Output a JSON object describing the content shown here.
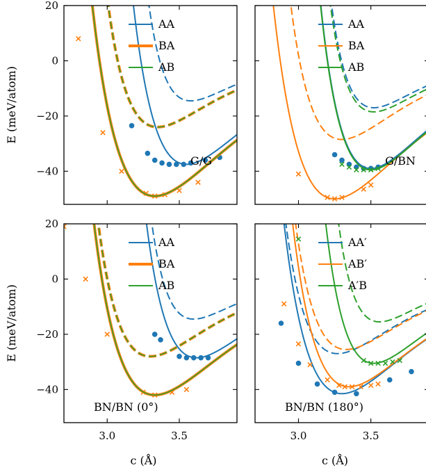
{
  "chart_data": [
    {
      "type": "line",
      "panel_label": "G/G",
      "xlim": [
        2.7,
        3.9
      ],
      "ylim": [
        -52,
        20
      ],
      "xticks": [
        "3.0",
        "3.5"
      ],
      "yticks": [
        "20",
        "0",
        "−20",
        "−40"
      ],
      "ylabel": "E (meV/atom)",
      "xlabel": "",
      "legend_position": "top-right",
      "series": [
        {
          "name": "AA",
          "color": "#1f77b4",
          "x0": 3.55,
          "y0": -37.5,
          "k": 360,
          "width": 2,
          "dashed": {
            "x0": 3.58,
            "y0": -14.5,
            "k": 300
          },
          "markers": {
            "shape": "circle",
            "x": [
              3.17,
              3.28,
              3.33,
              3.38,
              3.43,
              3.48,
              3.53,
              3.58,
              3.68,
              3.78
            ],
            "y": [
              -23.5,
              -33.5,
              -36,
              -37,
              -37.5,
              -37.5,
              -37.5,
              -37,
              -36,
              -35
            ]
          }
        },
        {
          "name": "BA",
          "color": "#ff7f0e",
          "x0": 3.33,
          "y0": -49,
          "k": 320,
          "width": 4,
          "dashed": {
            "x0": 3.35,
            "y0": -24,
            "k": 300
          },
          "markers": {
            "shape": "x",
            "x": [
              2.8,
              2.97,
              3.1,
              3.27,
              3.33,
              3.4,
              3.5,
              3.63
            ],
            "y": [
              8,
              -26,
              -40,
              -48,
              -49,
              -48.5,
              -47,
              -44
            ]
          }
        },
        {
          "name": "AB",
          "color": "#2ca02c",
          "x0": 3.33,
          "y0": -49,
          "k": 320,
          "width": 1.5,
          "dashed": {
            "x0": 3.35,
            "y0": -24,
            "k": 300
          },
          "markers": {
            "shape": "none",
            "x": [],
            "y": []
          }
        }
      ]
    },
    {
      "type": "line",
      "panel_label": "G/BN",
      "xlim": [
        2.7,
        3.9
      ],
      "ylim": [
        -52,
        20
      ],
      "xticks": [
        "3.0",
        "3.5"
      ],
      "yticks": [
        "20",
        "0",
        "−20",
        "−40"
      ],
      "ylabel": "",
      "xlabel": "",
      "legend_position": "top-right",
      "series": [
        {
          "name": "AA",
          "color": "#1f77b4",
          "x0": 3.5,
          "y0": -39,
          "k": 420,
          "width": 2,
          "dashed": {
            "x0": 3.52,
            "y0": -17,
            "k": 330
          },
          "markers": {
            "shape": "circle",
            "x": [
              3.25,
              3.3,
              3.35,
              3.4,
              3.45,
              3.5,
              3.55
            ],
            "y": [
              -34,
              -36,
              -37.5,
              -38.5,
              -39,
              -39,
              -38.5
            ]
          }
        },
        {
          "name": "BA",
          "color": "#ff7f0e",
          "x0": 3.25,
          "y0": -50,
          "k": 340,
          "width": 2,
          "dashed": {
            "x0": 3.3,
            "y0": -28.5,
            "k": 320
          },
          "markers": {
            "shape": "x",
            "x": [
              3.0,
              3.2,
              3.25,
              3.3,
              3.45,
              3.5
            ],
            "y": [
              -41,
              -49.5,
              -50,
              -49.5,
              -46.5,
              -45
            ]
          }
        },
        {
          "name": "AB",
          "color": "#2ca02c",
          "x0": 3.5,
          "y0": -39.5,
          "k": 420,
          "width": 2,
          "dashed": {
            "x0": 3.52,
            "y0": -18.5,
            "k": 330
          },
          "markers": {
            "shape": "x",
            "x": [
              3.3,
              3.35,
              3.4,
              3.45,
              3.5,
              3.55
            ],
            "y": [
              -37.5,
              -38.5,
              -39.5,
              -39.5,
              -39.5,
              -39
            ]
          }
        }
      ]
    },
    {
      "type": "line",
      "panel_label": "BN/BN (0°)",
      "xlim": [
        2.7,
        3.9
      ],
      "ylim": [
        -52,
        20
      ],
      "xticks": [
        "3.0",
        "3.5"
      ],
      "yticks": [
        "20",
        "0",
        "−20",
        "−40"
      ],
      "ylabel": "E (meV/atom)",
      "xlabel": "c (Å)",
      "legend_position": "top-right",
      "series": [
        {
          "name": "AA",
          "color": "#1f77b4",
          "x0": 3.62,
          "y0": -28.5,
          "k": 330,
          "width": 2,
          "dashed": {
            "x0": 3.6,
            "y0": -14.5,
            "k": 300
          },
          "markers": {
            "shape": "circle",
            "x": [
              3.33,
              3.37,
              3.5,
              3.55,
              3.6,
              3.65,
              3.7
            ],
            "y": [
              -20,
              -22,
              -28,
              -28.5,
              -28.5,
              -28.5,
              -28.5
            ]
          }
        },
        {
          "name": "BA",
          "color": "#ff7f0e",
          "x0": 3.33,
          "y0": -42,
          "k": 300,
          "width": 4,
          "dashed": {
            "x0": 3.3,
            "y0": -28,
            "k": 300
          },
          "markers": {
            "shape": "x",
            "x": [
              2.7,
              2.85,
              3.0,
              3.25,
              3.33,
              3.45,
              3.55
            ],
            "y": [
              19,
              0,
              -20,
              -41,
              -42,
              -41,
              -40
            ]
          }
        },
        {
          "name": "AB",
          "color": "#2ca02c",
          "x0": 3.33,
          "y0": -42,
          "k": 300,
          "width": 1.5,
          "dashed": {
            "x0": 3.3,
            "y0": -28,
            "k": 300
          },
          "markers": {
            "shape": "none",
            "x": [],
            "y": []
          }
        }
      ]
    },
    {
      "type": "line",
      "panel_label": "BN/BN (180°)",
      "xlim": [
        2.7,
        3.9
      ],
      "ylim": [
        -52,
        20
      ],
      "xticks": [
        "3.0",
        "3.5"
      ],
      "yticks": [
        "20",
        "0",
        "−20",
        "−40"
      ],
      "ylabel": "",
      "xlabel": "c (Å)",
      "legend_position": "top-right",
      "series": [
        {
          "name": "AA′",
          "color": "#1f77b4",
          "x0": 3.3,
          "y0": -41.5,
          "k": 330,
          "width": 2,
          "dashed": {
            "x0": 3.27,
            "y0": -27,
            "k": 300
          },
          "markers": {
            "shape": "circle",
            "x": [
              2.88,
              3.0,
              3.13,
              3.25,
              3.4,
              3.63,
              3.78
            ],
            "y": [
              -16,
              -30.5,
              -38,
              -41,
              -41.5,
              -36.5,
              -33.5
            ]
          }
        },
        {
          "name": "AB′",
          "color": "#ff7f0e",
          "x0": 3.35,
          "y0": -39,
          "k": 330,
          "width": 2,
          "dashed": {
            "x0": 3.33,
            "y0": -25.5,
            "k": 300
          },
          "markers": {
            "shape": "x",
            "x": [
              2.9,
              3.0,
              3.08,
              3.2,
              3.28,
              3.32,
              3.37,
              3.43,
              3.5,
              3.55
            ],
            "y": [
              -9,
              -23.5,
              -31,
              -36.5,
              -38.5,
              -39,
              -39,
              -39,
              -38.5,
              -38
            ]
          }
        },
        {
          "name": "A′B",
          "color": "#2ca02c",
          "x0": 3.52,
          "y0": -30.5,
          "k": 380,
          "width": 2,
          "dashed": {
            "x0": 3.56,
            "y0": -15.5,
            "k": 330
          },
          "markers": {
            "shape": "x",
            "x": [
              3.0,
              3.45,
              3.5,
              3.55,
              3.6,
              3.65,
              3.7
            ],
            "y": [
              14.5,
              -29.5,
              -30.5,
              -30.5,
              -30.5,
              -30,
              -29.5
            ]
          }
        }
      ]
    }
  ]
}
